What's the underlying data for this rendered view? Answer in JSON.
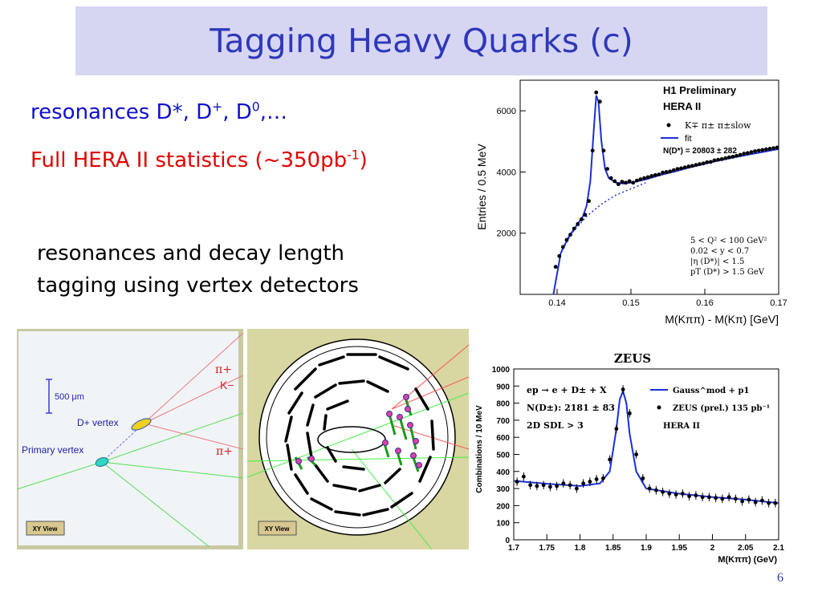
{
  "slide": {
    "title": "Tagging Heavy Quarks (c)",
    "line1": {
      "text": "resonances D*, D",
      "sup1": "+",
      "mid": ", D",
      "sup2": "0",
      "end": ",…"
    },
    "line2": {
      "text": "Full HERA II statistics (~350pb",
      "sup": "-1",
      "end": ")"
    },
    "line3": [
      "resonances and decay length",
      "tagging using vertex detectors"
    ],
    "page_number": "6"
  },
  "vertex_panel": {
    "scale": "500 μm",
    "dplus_label": "D+ vertex",
    "primary_label": "Primary vertex",
    "pi1": "π+",
    "k": "K−",
    "pi2": "π+",
    "button": "XY View"
  },
  "detector_panel": {
    "button": "XY View"
  },
  "colors": {
    "title": "#2f38b9",
    "title_bg": "#d6d6f3",
    "blue_text": "#0f10cc",
    "red_text": "#e00000",
    "fit_line": "#1a2fd6"
  },
  "chart_data": [
    {
      "type": "scatter",
      "title": "H1 Preliminary",
      "subtitle": "HERA II",
      "xlabel": "M(Kππ) - M(Kπ) [GeV]",
      "ylabel": "Entries / 0.5 MeV",
      "xlim": [
        0.135,
        0.17
      ],
      "ylim": [
        0,
        7000
      ],
      "xticks": [
        "0.14",
        "0.15",
        "0.16",
        "0.17"
      ],
      "yticks": [
        "2000",
        "4000",
        "6000"
      ],
      "legend": [
        "K∓ π± π±slow",
        "fit"
      ],
      "legend_position": "top-right",
      "annotation": "N(D*) = 20803 ± 282",
      "cuts": [
        "5 < Q² < 100 GeV²",
        "0.02 < y < 0.7",
        "|η (D*)| < 1.5",
        "pT (D*) > 1.5 GeV"
      ],
      "series": [
        {
          "name": "K∓ π± π±slow",
          "x": [
            0.1398,
            0.1403,
            0.1408,
            0.1413,
            0.1418,
            0.1423,
            0.1428,
            0.1433,
            0.1438,
            0.1443,
            0.1448,
            0.1453,
            0.1458,
            0.1463,
            0.1468,
            0.1473,
            0.1478,
            0.1483,
            0.1488,
            0.1493,
            0.1498,
            0.1503,
            0.1508,
            0.1513,
            0.1518,
            0.1523,
            0.1528,
            0.1533,
            0.1538,
            0.1543,
            0.1548,
            0.1553,
            0.1558,
            0.1563,
            0.1568,
            0.1573,
            0.1578,
            0.1583,
            0.1588,
            0.1593,
            0.1598,
            0.1603,
            0.1608,
            0.1613,
            0.1618,
            0.1623,
            0.1628,
            0.1633,
            0.1638,
            0.1643,
            0.1648,
            0.1653,
            0.1658,
            0.1663,
            0.1668,
            0.1673,
            0.1678,
            0.1683,
            0.1688,
            0.1693,
            0.1698
          ],
          "y": [
            900,
            1250,
            1550,
            1780,
            1950,
            2150,
            2300,
            2450,
            2600,
            3050,
            4700,
            6600,
            6300,
            4700,
            4100,
            3800,
            3700,
            3600,
            3680,
            3650,
            3700,
            3650,
            3720,
            3760,
            3800,
            3830,
            3870,
            3900,
            3920,
            3980,
            4000,
            4020,
            4060,
            4100,
            4120,
            4150,
            4180,
            4200,
            4230,
            4260,
            4280,
            4320,
            4330,
            4380,
            4400,
            4420,
            4450,
            4480,
            4500,
            4530,
            4560,
            4600,
            4620,
            4650,
            4680,
            4700,
            4720,
            4740,
            4760,
            4780,
            4800
          ]
        },
        {
          "name": "fit",
          "x": [
            0.1395,
            0.1405,
            0.1415,
            0.1425,
            0.1435,
            0.144,
            0.1445,
            0.145,
            0.1453,
            0.1456,
            0.146,
            0.1465,
            0.147,
            0.148,
            0.149,
            0.15,
            0.152,
            0.154,
            0.156,
            0.158,
            0.16,
            0.162,
            0.164,
            0.166,
            0.168,
            0.17
          ],
          "y": [
            0,
            1350,
            1850,
            2200,
            2550,
            2900,
            3700,
            5500,
            6500,
            6300,
            5000,
            4100,
            3800,
            3650,
            3620,
            3650,
            3760,
            3900,
            4020,
            4150,
            4270,
            4380,
            4480,
            4570,
            4660,
            4750
          ]
        }
      ]
    },
    {
      "type": "scatter",
      "title": "ZEUS",
      "xlabel": "M(Kππ) (GeV)",
      "ylabel": "Combinations / 10 MeV",
      "xlim": [
        1.7,
        2.1
      ],
      "ylim": [
        0,
        1000
      ],
      "xticks": [
        "1.7",
        "1.75",
        "1.8",
        "1.85",
        "1.9",
        "1.95",
        "2",
        "2.05",
        "2.1"
      ],
      "yticks": [
        "0",
        "100",
        "200",
        "300",
        "400",
        "500",
        "600",
        "700",
        "800",
        "900",
        "1000"
      ],
      "legend": [
        "Gauss^mod + p1",
        "ZEUS (prel.) 135 pb⁻¹",
        "HERA II"
      ],
      "legend_position": "top-right",
      "annotations": [
        "ep → e + D± + X",
        "N(D±): 2181 ± 83",
        "2D SDL > 3"
      ],
      "series": [
        {
          "name": "ZEUS (prel.) 135 pb⁻¹",
          "x": [
            1.705,
            1.715,
            1.725,
            1.735,
            1.745,
            1.755,
            1.765,
            1.775,
            1.785,
            1.795,
            1.805,
            1.815,
            1.825,
            1.835,
            1.845,
            1.855,
            1.865,
            1.875,
            1.885,
            1.895,
            1.905,
            1.915,
            1.925,
            1.935,
            1.945,
            1.955,
            1.965,
            1.975,
            1.985,
            1.995,
            2.005,
            2.015,
            2.025,
            2.035,
            2.045,
            2.055,
            2.065,
            2.075,
            2.085,
            2.095
          ],
          "y": [
            340,
            370,
            320,
            315,
            320,
            310,
            315,
            330,
            320,
            300,
            330,
            340,
            355,
            360,
            470,
            650,
            880,
            740,
            500,
            360,
            300,
            290,
            280,
            270,
            265,
            270,
            255,
            260,
            250,
            250,
            245,
            240,
            250,
            240,
            225,
            235,
            220,
            230,
            215,
            215
          ]
        },
        {
          "name": "Gauss^mod + p1",
          "x": [
            1.7,
            1.75,
            1.8,
            1.83,
            1.845,
            1.855,
            1.86,
            1.865,
            1.87,
            1.875,
            1.885,
            1.9,
            1.95,
            2.0,
            2.05,
            2.1
          ],
          "y": [
            345,
            328,
            315,
            330,
            400,
            650,
            820,
            870,
            800,
            620,
            400,
            300,
            270,
            250,
            235,
            215
          ]
        }
      ]
    }
  ]
}
